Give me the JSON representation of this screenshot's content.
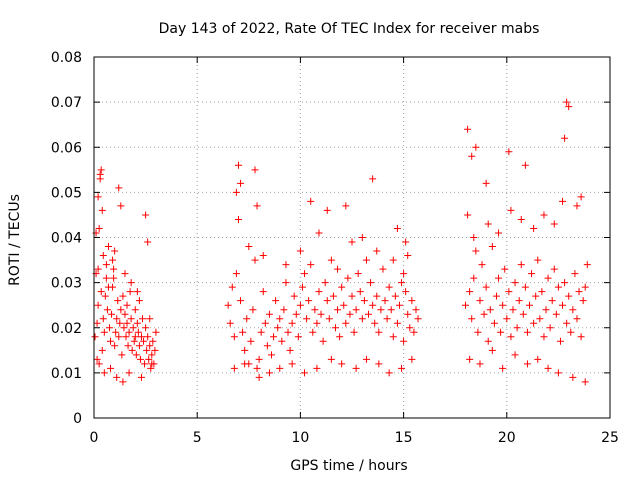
{
  "chart_data": {
    "type": "scatter",
    "title": "Day 143 of 2022, Rate Of TEC Index for receiver mabs",
    "xlabel": "GPS time / hours",
    "ylabel": "ROTI / TECUs",
    "xlim": [
      0,
      25
    ],
    "ylim": [
      0,
      0.08
    ],
    "xticks": [
      0,
      5,
      10,
      15,
      20,
      25
    ],
    "xtick_labels": [
      "0",
      "5",
      "10",
      "15",
      "20",
      "25"
    ],
    "yticks": [
      0,
      0.01,
      0.02,
      0.03,
      0.04,
      0.05,
      0.06,
      0.07,
      0.08
    ],
    "ytick_labels": [
      "0",
      "0.01",
      "0.02",
      "0.03",
      "0.04",
      "0.05",
      "0.06",
      "0.07",
      "0.08"
    ],
    "grid": true,
    "marker": "plus",
    "color": "#ff0000",
    "series": [
      {
        "x": [
          0.05,
          0.1,
          0.15,
          0.2,
          0.25,
          0.3,
          0.35,
          0.4,
          0.45,
          0.5,
          0.55,
          0.6,
          0.65,
          0.7,
          0.75,
          0.8,
          0.85,
          0.9,
          0.95,
          1.0,
          1.05,
          1.1,
          1.15,
          1.2,
          1.25,
          1.3,
          1.35,
          1.4,
          1.45,
          1.5,
          1.55,
          1.6,
          1.65,
          1.7,
          1.75,
          1.8,
          1.85,
          1.9,
          1.95,
          2.0,
          2.05,
          2.1,
          2.15,
          2.2,
          2.25,
          2.3,
          2.35,
          2.4,
          2.45,
          2.5,
          2.55,
          2.6,
          2.65,
          2.7,
          2.75,
          2.8,
          2.85,
          2.9,
          2.95,
          3.0,
          0.3,
          0.35,
          0.1,
          0.2,
          1.2,
          1.3,
          2.5,
          2.6,
          0.4,
          0.25,
          0.8,
          0.9,
          1.0,
          0.6,
          0.7,
          1.5,
          1.8,
          2.0,
          2.2,
          0.15,
          0.5,
          1.1,
          1.4,
          1.7,
          2.3,
          2.8,
          0.2,
          0.45,
          0.95,
          1.6,
          2.1,
          2.7
        ],
        "y": [
          0.018,
          0.032,
          0.021,
          0.025,
          0.042,
          0.053,
          0.028,
          0.046,
          0.022,
          0.019,
          0.027,
          0.031,
          0.024,
          0.038,
          0.02,
          0.017,
          0.023,
          0.029,
          0.033,
          0.016,
          0.019,
          0.022,
          0.026,
          0.018,
          0.021,
          0.024,
          0.014,
          0.027,
          0.02,
          0.023,
          0.018,
          0.021,
          0.016,
          0.019,
          0.028,
          0.022,
          0.015,
          0.02,
          0.017,
          0.018,
          0.014,
          0.021,
          0.019,
          0.016,
          0.013,
          0.018,
          0.022,
          0.017,
          0.012,
          0.02,
          0.015,
          0.018,
          0.013,
          0.016,
          0.011,
          0.014,
          0.017,
          0.012,
          0.015,
          0.019,
          0.054,
          0.055,
          0.041,
          0.049,
          0.051,
          0.047,
          0.045,
          0.039,
          0.015,
          0.012,
          0.011,
          0.035,
          0.037,
          0.034,
          0.029,
          0.032,
          0.03,
          0.024,
          0.026,
          0.013,
          0.01,
          0.009,
          0.008,
          0.01,
          0.009,
          0.012,
          0.033,
          0.036,
          0.031,
          0.025,
          0.028,
          0.022
        ],
        "name": ""
      },
      {
        "x": [
          6.5,
          6.6,
          6.7,
          6.8,
          6.9,
          7.0,
          7.1,
          7.2,
          7.3,
          7.4,
          7.5,
          7.6,
          7.7,
          7.8,
          7.9,
          8.0,
          8.1,
          8.2,
          8.3,
          8.4,
          8.5,
          8.6,
          8.7,
          8.8,
          8.9,
          9.0,
          9.1,
          9.2,
          9.3,
          9.4,
          9.5,
          9.6,
          9.7,
          9.8,
          9.9,
          10.0,
          10.1,
          10.2,
          10.3,
          10.4,
          10.5,
          10.6,
          10.7,
          10.8,
          10.9,
          11.0,
          11.1,
          11.2,
          11.3,
          11.4,
          11.5,
          11.6,
          11.7,
          11.8,
          11.9,
          12.0,
          12.1,
          12.2,
          12.3,
          12.4,
          12.5,
          12.6,
          12.7,
          12.8,
          12.9,
          13.0,
          13.1,
          13.2,
          13.3,
          13.4,
          13.5,
          13.6,
          13.7,
          13.8,
          13.9,
          14.0,
          14.1,
          14.2,
          14.3,
          14.4,
          14.5,
          14.6,
          14.7,
          14.8,
          14.9,
          15.0,
          15.1,
          15.2,
          15.3,
          15.4,
          15.5,
          15.6,
          15.7,
          7.0,
          7.1,
          7.8,
          7.9,
          6.9,
          10.5,
          11.3,
          12.2,
          13.5,
          14.7,
          15.1,
          15.2,
          6.8,
          7.3,
          8.0,
          8.5,
          9.0,
          9.6,
          10.2,
          10.8,
          11.5,
          12.0,
          12.7,
          13.2,
          13.8,
          14.3,
          14.9,
          15.4,
          7.5,
          8.2,
          9.3,
          10.0,
          10.9,
          11.8,
          12.5,
          13.0,
          13.7,
          14.5,
          15.0
        ],
        "y": [
          0.025,
          0.021,
          0.029,
          0.018,
          0.032,
          0.044,
          0.026,
          0.019,
          0.015,
          0.022,
          0.012,
          0.017,
          0.024,
          0.035,
          0.011,
          0.013,
          0.019,
          0.028,
          0.021,
          0.016,
          0.023,
          0.014,
          0.018,
          0.026,
          0.02,
          0.022,
          0.017,
          0.024,
          0.03,
          0.019,
          0.015,
          0.021,
          0.027,
          0.023,
          0.018,
          0.025,
          0.029,
          0.032,
          0.022,
          0.026,
          0.034,
          0.019,
          0.024,
          0.021,
          0.028,
          0.023,
          0.017,
          0.03,
          0.026,
          0.022,
          0.035,
          0.027,
          0.02,
          0.024,
          0.018,
          0.029,
          0.025,
          0.021,
          0.031,
          0.023,
          0.027,
          0.019,
          0.024,
          0.032,
          0.028,
          0.022,
          0.026,
          0.035,
          0.023,
          0.03,
          0.025,
          0.021,
          0.027,
          0.019,
          0.024,
          0.033,
          0.026,
          0.022,
          0.029,
          0.024,
          0.018,
          0.027,
          0.021,
          0.025,
          0.03,
          0.017,
          0.028,
          0.023,
          0.02,
          0.026,
          0.019,
          0.024,
          0.022,
          0.056,
          0.052,
          0.055,
          0.047,
          0.05,
          0.048,
          0.046,
          0.047,
          0.053,
          0.042,
          0.039,
          0.036,
          0.011,
          0.012,
          0.009,
          0.01,
          0.011,
          0.012,
          0.01,
          0.011,
          0.013,
          0.012,
          0.011,
          0.013,
          0.012,
          0.01,
          0.011,
          0.013,
          0.038,
          0.036,
          0.034,
          0.037,
          0.041,
          0.033,
          0.039,
          0.04,
          0.037,
          0.035,
          0.032
        ],
        "name": ""
      },
      {
        "x": [
          18.0,
          18.1,
          18.2,
          18.3,
          18.4,
          18.5,
          18.6,
          18.7,
          18.8,
          18.9,
          19.0,
          19.1,
          19.2,
          19.3,
          19.4,
          19.5,
          19.6,
          19.7,
          19.8,
          19.9,
          20.0,
          20.1,
          20.2,
          20.3,
          20.4,
          20.5,
          20.6,
          20.7,
          20.8,
          20.9,
          21.0,
          21.1,
          21.2,
          21.3,
          21.4,
          21.5,
          21.6,
          21.7,
          21.8,
          21.9,
          22.0,
          22.1,
          22.2,
          22.3,
          22.4,
          22.5,
          22.6,
          22.7,
          22.8,
          22.9,
          23.0,
          23.1,
          23.2,
          23.3,
          23.4,
          23.5,
          23.6,
          23.7,
          23.8,
          23.9,
          18.1,
          18.3,
          18.5,
          19.0,
          20.1,
          20.9,
          22.9,
          23.0,
          22.8,
          23.6,
          18.2,
          18.7,
          19.3,
          19.8,
          20.4,
          21.0,
          21.5,
          22.0,
          22.5,
          23.2,
          23.8,
          18.4,
          19.1,
          19.6,
          20.2,
          20.7,
          21.3,
          21.8,
          22.3,
          22.7,
          23.4
        ],
        "y": [
          0.025,
          0.045,
          0.028,
          0.022,
          0.031,
          0.037,
          0.019,
          0.026,
          0.034,
          0.023,
          0.029,
          0.017,
          0.024,
          0.038,
          0.021,
          0.027,
          0.031,
          0.019,
          0.025,
          0.033,
          0.022,
          0.028,
          0.018,
          0.024,
          0.03,
          0.02,
          0.026,
          0.034,
          0.023,
          0.029,
          0.019,
          0.025,
          0.032,
          0.021,
          0.027,
          0.035,
          0.022,
          0.028,
          0.018,
          0.024,
          0.031,
          0.02,
          0.026,
          0.033,
          0.023,
          0.029,
          0.017,
          0.025,
          0.03,
          0.021,
          0.027,
          0.019,
          0.024,
          0.032,
          0.022,
          0.028,
          0.018,
          0.026,
          0.029,
          0.034,
          0.064,
          0.058,
          0.06,
          0.052,
          0.059,
          0.056,
          0.07,
          0.069,
          0.062,
          0.049,
          0.013,
          0.012,
          0.015,
          0.011,
          0.014,
          0.012,
          0.013,
          0.011,
          0.01,
          0.009,
          0.008,
          0.04,
          0.043,
          0.041,
          0.046,
          0.044,
          0.042,
          0.045,
          0.043,
          0.048,
          0.047
        ],
        "name": ""
      }
    ]
  }
}
